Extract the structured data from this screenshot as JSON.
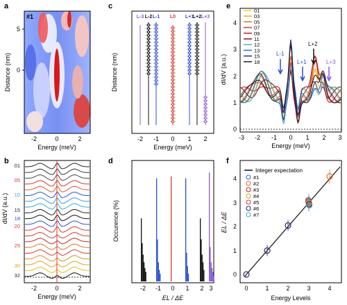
{
  "panels": {
    "a": {
      "letter": "a",
      "tag": "#1",
      "ylabel": "Distance (nm)",
      "xlabel": "Energy (meV)",
      "yticks": [
        0,
        5
      ],
      "xticks": [
        -2,
        0,
        2
      ]
    },
    "b": {
      "letter": "b",
      "ylabel": "dI/dV (a.u.)",
      "xlabel": "Energy (meV)",
      "xticks": [
        -2,
        0,
        2
      ],
      "curve_labels": [
        {
          "text": "01",
          "color": "#222222"
        },
        {
          "text": "05",
          "color": "#d23a2a"
        },
        {
          "text": "10",
          "color": "#3a9bd6"
        },
        {
          "text": "15",
          "color": "#222222"
        },
        {
          "text": "18",
          "color": "#2a4fd0"
        },
        {
          "text": "20",
          "color": "#d23a2a"
        },
        {
          "text": "25",
          "color": "#d23a2a"
        },
        {
          "text": "30",
          "color": "#e0a21a"
        },
        {
          "text": "32",
          "color": "#222222"
        }
      ]
    },
    "c": {
      "letter": "c",
      "ylabel": "Distance (nm)",
      "xlabel": "Energy (meV)",
      "xticks": [
        -2,
        -1,
        0,
        1,
        2
      ],
      "columns": [
        {
          "label": "L-3",
          "color": "#8a5ad6"
        },
        {
          "label": "L-2",
          "color": "#111111"
        },
        {
          "label": "L-1",
          "color": "#2a4fd0"
        },
        {
          "label": "L0",
          "color": "#d23a2a"
        },
        {
          "label": "L+1",
          "color": "#2a4fd0"
        },
        {
          "label": "L+2",
          "color": "#111111"
        },
        {
          "label": "L+3",
          "color": "#8a5ad6"
        }
      ]
    },
    "d": {
      "letter": "d",
      "ylabel": "Occurence (%)",
      "xlabel": "EL / ΔE",
      "xticks": [
        -2,
        -1,
        0,
        1,
        2,
        3
      ]
    },
    "e": {
      "letter": "e",
      "ylabel": "dI/dV (a.u.)",
      "xlabel": "Energy (meV)",
      "yticks": [
        0,
        1,
        2,
        3,
        4
      ],
      "xticks": [
        -3,
        -2,
        -1,
        0,
        1,
        2,
        3
      ],
      "legend": [
        {
          "text": "01",
          "color": "#f2d21a"
        },
        {
          "text": "03",
          "color": "#e8a820"
        },
        {
          "text": "05",
          "color": "#e0702a"
        },
        {
          "text": "07",
          "color": "#d6402a"
        },
        {
          "text": "09",
          "color": "#b8202a"
        },
        {
          "text": "11",
          "color": "#7a1a1a"
        },
        {
          "text": "12",
          "color": "#5aa6d6"
        },
        {
          "text": "13",
          "color": "#1a7ad0"
        },
        {
          "text": "15",
          "color": "#2a2a80"
        },
        {
          "text": "18",
          "color": "#222222"
        }
      ],
      "annotations": [
        {
          "text": "L-1",
          "color": "#2a4fd0"
        },
        {
          "text": "L+1",
          "color": "#2a4fd0"
        },
        {
          "text": "L+2",
          "color": "#111111"
        },
        {
          "text": "L+3",
          "color": "#8a5ad6"
        }
      ]
    },
    "f": {
      "letter": "f",
      "ylabel": "EL / ΔE",
      "xlabel": "Energy Levels",
      "xticks": [
        0,
        1,
        2,
        3,
        4
      ],
      "yticks": [
        0,
        1,
        2,
        3,
        4
      ],
      "legend_line": "Integer expectation",
      "legend": [
        {
          "text": "#1",
          "color": "#2a6fd0"
        },
        {
          "text": "#2",
          "color": "#e0702a"
        },
        {
          "text": "#3",
          "color": "#c02a2a"
        },
        {
          "text": "#4",
          "color": "#e0a21a"
        },
        {
          "text": "#5",
          "color": "#d23a2a"
        },
        {
          "text": "#6",
          "color": "#2a2a70"
        },
        {
          "text": "#7",
          "color": "#3ab0c8"
        }
      ]
    }
  },
  "chart_data": [
    {
      "panel": "d",
      "type": "bar",
      "series": [
        {
          "name": "L-2",
          "x": -2,
          "values": [
            33,
            20,
            14,
            10,
            7,
            5
          ]
        },
        {
          "name": "L-1",
          "x": -1,
          "values": [
            54,
            22,
            10,
            6,
            4
          ]
        },
        {
          "name": "L0",
          "x": 0,
          "values": [
            55
          ]
        },
        {
          "name": "L+1",
          "x": 1,
          "values": [
            54,
            15,
            8,
            4
          ]
        },
        {
          "name": "L+2",
          "x": 2,
          "values": [
            33,
            22,
            14,
            10,
            6
          ]
        },
        {
          "name": "L+3",
          "x": 3,
          "values": [
            57,
            18,
            10,
            7,
            5,
            3
          ]
        }
      ],
      "ylim": [
        0,
        60
      ]
    },
    {
      "panel": "f",
      "type": "scatter",
      "x": [
        0,
        1,
        2,
        3,
        4
      ],
      "y": [
        0,
        1.0,
        2.05,
        3.0,
        4.1
      ],
      "line": {
        "name": "Integer expectation",
        "slope": 1
      },
      "xlim": [
        -0.2,
        4.6
      ],
      "ylim": [
        -0.2,
        4.8
      ]
    }
  ]
}
